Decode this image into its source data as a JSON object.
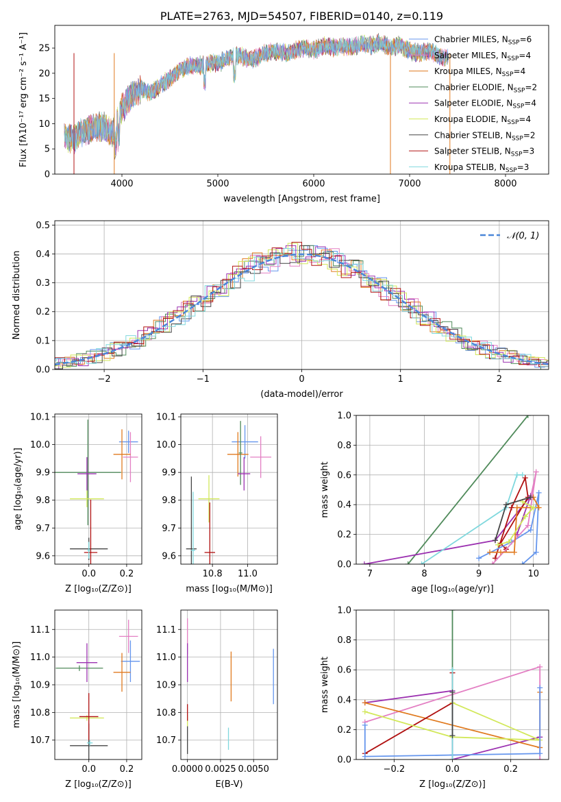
{
  "colors": {
    "chabrier_miles": "#6495ED",
    "salpeter_miles": "#E37FC3",
    "kroupa_miles": "#E07A1F",
    "chabrier_elodie": "#4F8A5A",
    "salpeter_elodie": "#9B30B0",
    "kroupa_elodie": "#D2E85A",
    "chabrier_stelib": "#444444",
    "salpeter_stelib": "#B01010",
    "kroupa_stelib": "#7FD8DD",
    "gaussian": "#4A86D8",
    "grid": "#B0B0B0"
  },
  "chart_data": [
    {
      "type": "line",
      "title": "PLATE=2763, MJD=54507, FIBERID=0140, z=0.119",
      "xlabel": "wavelength [Angstrom, rest frame]",
      "ylabel": "Flux [fλ10⁻¹⁷ erg cm⁻² s⁻¹ A⁻¹]",
      "xlim": [
        3300,
        8450
      ],
      "ylim": [
        0,
        29.5
      ],
      "xticks": [
        4000,
        5000,
        6000,
        7000,
        8000
      ],
      "yticks": [
        0,
        5,
        10,
        15,
        20,
        25
      ],
      "grid": false,
      "legend_position": "top-right",
      "legend": [
        {
          "label": "Chabrier MILES, N",
          "sub": "SSP",
          "rest": "=6",
          "color_key": "chabrier_miles"
        },
        {
          "label": "Salpeter MILES, N",
          "sub": "SSP",
          "rest": "=4",
          "color_key": "salpeter_miles"
        },
        {
          "label": "Kroupa MILES, N",
          "sub": "SSP",
          "rest": "=4",
          "color_key": "kroupa_miles"
        },
        {
          "label": "Chabrier ELODIE, N",
          "sub": "SSP",
          "rest": "=2",
          "color_key": "chabrier_elodie"
        },
        {
          "label": "Salpeter ELODIE, N",
          "sub": "SSP",
          "rest": "=4",
          "color_key": "salpeter_elodie"
        },
        {
          "label": "Kroupa ELODIE, N",
          "sub": "SSP",
          "rest": "=4",
          "color_key": "kroupa_elodie"
        },
        {
          "label": "Chabrier STELIB, N",
          "sub": "SSP",
          "rest": "=2",
          "color_key": "chabrier_stelib"
        },
        {
          "label": "Salpeter STELIB, N",
          "sub": "SSP",
          "rest": "=3",
          "color_key": "salpeter_stelib"
        },
        {
          "label": "Kroupa STELIB, N",
          "sub": "SSP",
          "rest": "=3",
          "color_key": "kroupa_stelib"
        }
      ],
      "spectrum_envelope": {
        "x": [
          3400,
          3500,
          3600,
          3700,
          3800,
          3900,
          4000,
          4100,
          4200,
          4300,
          4400,
          4500,
          4600,
          4700,
          4800,
          4900,
          5000,
          5100,
          5200,
          5300,
          5400,
          5500,
          5600,
          5700,
          5800,
          5900,
          6000,
          6100,
          6200,
          6300,
          6400,
          6500,
          6600,
          6700,
          6800,
          6900,
          7000,
          7100,
          7200,
          7300,
          7400
        ],
        "y": [
          7.5,
          7.0,
          8.5,
          9.0,
          9.5,
          8.0,
          13.0,
          15.5,
          17.0,
          16.0,
          17.5,
          19.0,
          20.5,
          21.5,
          21.5,
          22.0,
          22.0,
          23.0,
          23.5,
          23.0,
          23.0,
          24.0,
          24.5,
          24.0,
          24.5,
          25.0,
          24.5,
          25.5,
          25.0,
          25.5,
          25.0,
          26.0,
          25.5,
          26.0,
          25.0,
          25.5,
          24.5,
          24.0,
          24.5,
          23.5,
          23.0
        ]
      },
      "spike_x": [
        3500,
        3920,
        6800,
        7420
      ]
    },
    {
      "type": "step",
      "xlabel": "(data-model)/error",
      "ylabel": "Normed distribution",
      "xlim": [
        -2.5,
        2.5
      ],
      "ylim": [
        0,
        0.515
      ],
      "xticks": [
        -2,
        -1,
        0,
        1,
        2
      ],
      "xtick_labels": [
        "−2",
        "−1",
        "0",
        "1",
        "2"
      ],
      "yticks": [
        0.0,
        0.1,
        0.2,
        0.3,
        0.4,
        0.5
      ],
      "ytick_labels": [
        "0.0",
        "0.1",
        "0.2",
        "0.3",
        "0.4",
        "0.5"
      ],
      "grid": true,
      "legend_position": "top-right",
      "legend_label": "𝒩(0, 1)",
      "bin_width": 0.1,
      "series_jitter_amplitude": 0.045
    },
    {
      "type": "scatter",
      "xlabel": "Z [log₁₀(Z/Z⊙)]",
      "ylabel": "age  [log₁₀(age/yr)]",
      "xlim": [
        -0.18,
        0.28
      ],
      "ylim": [
        9.57,
        10.11
      ],
      "xticks": [
        0.0,
        0.2
      ],
      "xtick_labels": [
        "0.0",
        "0.2"
      ],
      "yticks": [
        9.6,
        9.7,
        9.8,
        9.9,
        10.0,
        10.1
      ],
      "ytick_labels": [
        "9.6",
        "9.7",
        "9.8",
        "9.9",
        "10.0",
        "10.1"
      ],
      "points": [
        {
          "x": 0.21,
          "y": 10.01,
          "xerr": 0.05,
          "yerr": 0.04,
          "color_key": "chabrier_miles"
        },
        {
          "x": 0.22,
          "y": 9.955,
          "xerr": 0.04,
          "yerr": 0.09,
          "color_key": "salpeter_miles"
        },
        {
          "x": 0.175,
          "y": 9.965,
          "xerr": 0.045,
          "yerr": 0.09,
          "color_key": "kroupa_miles"
        },
        {
          "x": -0.005,
          "y": 9.9,
          "xerr": 0.175,
          "yerr": 0.19,
          "color_key": "chabrier_elodie"
        },
        {
          "x": -0.01,
          "y": 9.895,
          "xerr": 0.05,
          "yerr": 0.06,
          "color_key": "salpeter_elodie"
        },
        {
          "x": -0.01,
          "y": 9.805,
          "xerr": 0.09,
          "yerr": 0.03,
          "color_key": "kroupa_elodie"
        },
        {
          "x": 0.0,
          "y": 9.625,
          "xerr": 0.1,
          "yerr": 0.04,
          "color_key": "chabrier_stelib"
        },
        {
          "x": 0.01,
          "y": 9.612,
          "xerr": 0.035,
          "yerr": 0.19,
          "color_key": "salpeter_stelib"
        },
        {
          "x": 0.0,
          "y": 9.62,
          "xerr": 0.008,
          "yerr": 0.03,
          "color_key": "kroupa_stelib"
        }
      ]
    },
    {
      "type": "scatter",
      "xlabel": "mass [log₁₀(M/M⊙)]",
      "ylabel": "",
      "xlim": [
        10.62,
        11.17
      ],
      "ylim": [
        9.57,
        10.11
      ],
      "xticks": [
        10.8,
        11.0
      ],
      "xtick_labels": [
        "10.8",
        "11.0"
      ],
      "yticks": [
        9.6,
        9.7,
        9.8,
        9.9,
        10.0,
        10.1
      ],
      "ytick_labels": [
        "9.6",
        "9.7",
        "9.8",
        "9.9",
        "10.0",
        "10.1"
      ],
      "points": [
        {
          "x": 10.985,
          "y": 10.01,
          "xerr": 0.075,
          "yerr": 0.06,
          "color_key": "chabrier_miles"
        },
        {
          "x": 11.075,
          "y": 9.955,
          "xerr": 0.06,
          "yerr": 0.075,
          "color_key": "salpeter_miles"
        },
        {
          "x": 10.945,
          "y": 9.965,
          "xerr": 0.06,
          "yerr": 0.08,
          "color_key": "kroupa_miles"
        },
        {
          "x": 10.96,
          "y": 9.97,
          "xerr": 0.01,
          "yerr": 0.115,
          "color_key": "chabrier_elodie"
        },
        {
          "x": 10.98,
          "y": 9.895,
          "xerr": 0.035,
          "yerr": 0.06,
          "color_key": "salpeter_elodie"
        },
        {
          "x": 10.78,
          "y": 9.805,
          "xerr": 0.06,
          "yerr": 0.085,
          "color_key": "kroupa_elodie"
        },
        {
          "x": 10.68,
          "y": 9.625,
          "xerr": 0.03,
          "yerr": 0.26,
          "color_key": "chabrier_stelib"
        },
        {
          "x": 10.785,
          "y": 9.612,
          "xerr": 0.03,
          "yerr": 0.18,
          "color_key": "salpeter_stelib"
        },
        {
          "x": 10.69,
          "y": 9.62,
          "xerr": 0.012,
          "yerr": 0.21,
          "color_key": "kroupa_stelib"
        }
      ]
    },
    {
      "type": "line",
      "xlabel": "age  [log₁₀(age/yr)]",
      "ylabel": "mass weight",
      "xlim": [
        6.75,
        10.28
      ],
      "ylim": [
        0,
        1.0
      ],
      "xticks": [
        7,
        8,
        9,
        10
      ],
      "xtick_labels": [
        "7",
        "8",
        "9",
        "10"
      ],
      "yticks": [
        0.0,
        0.2,
        0.4,
        0.6,
        0.8,
        1.0
      ],
      "ytick_labels": [
        "0.0",
        "0.2",
        "0.4",
        "0.6",
        "0.8",
        "1.0"
      ],
      "series": [
        {
          "color_key": "chabrier_elodie",
          "x": [
            7.7,
            9.9
          ],
          "y": [
            0.0,
            1.0
          ]
        },
        {
          "color_key": "salpeter_elodie",
          "x": [
            6.9,
            9.3,
            9.95,
            9.7
          ],
          "y": [
            0.0,
            0.16,
            0.46,
            0.2
          ]
        },
        {
          "color_key": "kroupa_stelib",
          "x": [
            7.95,
            9.5,
            9.7,
            9.8
          ],
          "y": [
            0.0,
            0.38,
            0.6,
            0.6
          ]
        },
        {
          "color_key": "salpeter_stelib",
          "x": [
            9.3,
            9.6,
            9.85,
            9.9,
            9.4,
            9.5
          ],
          "y": [
            0.04,
            0.38,
            0.58,
            0.45,
            0.14,
            0.1
          ]
        },
        {
          "color_key": "chabrier_miles",
          "x": [
            9.0,
            9.6,
            9.95,
            10.1,
            10.05,
            9.8
          ],
          "y": [
            0.04,
            0.15,
            0.23,
            0.48,
            0.08,
            0.0
          ]
        },
        {
          "color_key": "salpeter_miles",
          "x": [
            9.25,
            9.9,
            10.05,
            9.95
          ],
          "y": [
            0.0,
            0.26,
            0.62,
            0.45
          ]
        },
        {
          "color_key": "kroupa_miles",
          "x": [
            9.2,
            9.4,
            9.65,
            9.7,
            10.1,
            10.0
          ],
          "y": [
            0.08,
            0.08,
            0.08,
            0.38,
            0.38,
            0.45
          ]
        },
        {
          "color_key": "kroupa_elodie",
          "x": [
            9.35,
            9.55,
            9.85,
            10.0,
            9.8
          ],
          "y": [
            0.13,
            0.15,
            0.32,
            0.38,
            0.42
          ]
        },
        {
          "color_key": "chabrier_stelib",
          "x": [
            9.3,
            9.5,
            9.95
          ],
          "y": [
            0.16,
            0.4,
            0.45
          ]
        }
      ]
    },
    {
      "type": "scatter",
      "xlabel": "Z [log₁₀(Z/Z⊙)]",
      "ylabel": "mass [log₁₀(M/M⊙)]",
      "xlim": [
        -0.18,
        0.28
      ],
      "ylim": [
        10.63,
        11.17
      ],
      "xticks": [
        0.0,
        0.2
      ],
      "xtick_labels": [
        "0.0",
        "0.2"
      ],
      "yticks": [
        10.7,
        10.8,
        10.9,
        11.0,
        11.1
      ],
      "ytick_labels": [
        "10.7",
        "10.8",
        "10.9",
        "11.0",
        "11.1"
      ],
      "points": [
        {
          "x": 0.22,
          "y": 10.985,
          "xerr": 0.05,
          "yerr": 0.075,
          "color_key": "chabrier_miles"
        },
        {
          "x": 0.21,
          "y": 11.075,
          "xerr": 0.05,
          "yerr": 0.06,
          "color_key": "salpeter_miles"
        },
        {
          "x": 0.175,
          "y": 10.945,
          "xerr": 0.045,
          "yerr": 0.07,
          "color_key": "kroupa_miles"
        },
        {
          "x": -0.05,
          "y": 10.96,
          "xerr": 0.125,
          "yerr": 0.01,
          "color_key": "chabrier_elodie"
        },
        {
          "x": -0.01,
          "y": 10.98,
          "xerr": 0.055,
          "yerr": 0.07,
          "color_key": "salpeter_elodie"
        },
        {
          "x": -0.01,
          "y": 10.78,
          "xerr": 0.09,
          "yerr": 0.01,
          "color_key": "kroupa_elodie"
        },
        {
          "x": 0.0,
          "y": 10.68,
          "xerr": 0.1,
          "yerr": 0.08,
          "color_key": "chabrier_stelib"
        },
        {
          "x": 0.0,
          "y": 10.785,
          "xerr": 0.05,
          "yerr": 0.085,
          "color_key": "salpeter_stelib"
        },
        {
          "x": 0.005,
          "y": 10.69,
          "xerr": 0.015,
          "yerr": 0.01,
          "color_key": "kroupa_stelib"
        }
      ]
    },
    {
      "type": "scatter",
      "xlabel": "E(B-V)",
      "ylabel": "",
      "xlim": [
        -0.0005,
        0.0068
      ],
      "ylim": [
        10.63,
        11.17
      ],
      "xticks": [
        0.0,
        0.0025,
        0.005
      ],
      "xtick_labels": [
        "0.0000",
        "0.0025",
        "0.0050"
      ],
      "yticks": [
        10.7,
        10.8,
        10.9,
        11.0,
        11.1
      ],
      "ytick_labels": [
        "10.7",
        "10.8",
        "10.9",
        "11.0",
        "11.1"
      ],
      "points": [
        {
          "x": 0.0065,
          "y": 10.93,
          "xerr": 0,
          "yerr": 0.1,
          "color_key": "chabrier_miles"
        },
        {
          "x": 0.0,
          "y": 11.075,
          "xerr": 0,
          "yerr": 0.065,
          "color_key": "salpeter_miles"
        },
        {
          "x": 0.0033,
          "y": 10.93,
          "xerr": 0,
          "yerr": 0.09,
          "color_key": "kroupa_miles"
        },
        {
          "x": 0.0,
          "y": 10.98,
          "xerr": 0,
          "yerr": 0.07,
          "color_key": "salpeter_elodie"
        },
        {
          "x": 0.0,
          "y": 10.77,
          "xerr": 0,
          "yerr": 0.02,
          "color_key": "kroupa_elodie"
        },
        {
          "x": 0.0,
          "y": 10.7,
          "xerr": 0,
          "yerr": 0.05,
          "color_key": "chabrier_stelib"
        },
        {
          "x": 0.0,
          "y": 10.8,
          "xerr": 0,
          "yerr": 0.03,
          "color_key": "salpeter_stelib"
        },
        {
          "x": 0.0031,
          "y": 10.705,
          "xerr": 0,
          "yerr": 0.04,
          "color_key": "kroupa_stelib"
        }
      ]
    },
    {
      "type": "line",
      "xlabel": "Z [log₁₀(Z/Z⊙)]",
      "ylabel": "mass weight",
      "xlim": [
        -0.33,
        0.33
      ],
      "ylim": [
        0,
        1.0
      ],
      "xticks": [
        -0.2,
        0.0,
        0.2
      ],
      "xtick_labels": [
        "−0.2",
        "0.0",
        "0.2"
      ],
      "yticks": [
        0.0,
        0.2,
        0.4,
        0.6,
        0.8,
        1.0
      ],
      "ytick_labels": [
        "0.0",
        "0.2",
        "0.4",
        "0.6",
        "0.8",
        "1.0"
      ],
      "series": [
        {
          "color_key": "chabrier_elodie",
          "x": [
            0.0,
            0.0
          ],
          "y": [
            1.0,
            0.0
          ]
        },
        {
          "color_key": "salpeter_miles",
          "x": [
            -0.3,
            0.3,
            0.3
          ],
          "y": [
            0.25,
            0.62,
            0.0
          ]
        },
        {
          "color_key": "salpeter_elodie",
          "x": [
            -0.3,
            0.0,
            0.0,
            0.3
          ],
          "y": [
            0.38,
            0.46,
            0.0,
            0.15
          ]
        },
        {
          "color_key": "kroupa_miles",
          "x": [
            -0.3,
            0.3,
            0.3
          ],
          "y": [
            0.38,
            0.08,
            0.45
          ]
        },
        {
          "color_key": "salpeter_stelib",
          "x": [
            -0.3,
            0.0,
            0.0
          ],
          "y": [
            0.04,
            0.38,
            0.58
          ]
        },
        {
          "color_key": "kroupa_elodie",
          "x": [
            -0.3,
            0.0,
            0.3,
            0.0
          ],
          "y": [
            0.32,
            0.15,
            0.13,
            0.38
          ]
        },
        {
          "color_key": "chabrier_miles",
          "x": [
            -0.3,
            -0.3,
            0.0,
            0.3,
            0.3
          ],
          "y": [
            0.23,
            0.02,
            0.03,
            0.04,
            0.48
          ]
        },
        {
          "color_key": "kroupa_stelib",
          "x": [
            0.0,
            0.0
          ],
          "y": [
            0.6,
            0.0
          ]
        },
        {
          "color_key": "chabrier_stelib",
          "x": [
            0.0,
            0.0
          ],
          "y": [
            0.45,
            0.16
          ]
        }
      ]
    }
  ]
}
